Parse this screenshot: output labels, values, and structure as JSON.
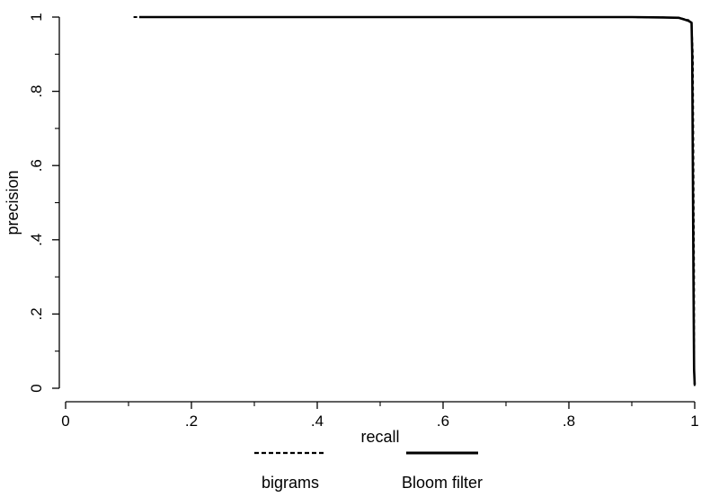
{
  "chart_data": {
    "type": "line",
    "title": "",
    "xlabel": "recall",
    "ylabel": "precision",
    "xlim": [
      0,
      1
    ],
    "ylim": [
      0,
      1
    ],
    "x_ticks": [
      0,
      0.2,
      0.4,
      0.6,
      0.8,
      1
    ],
    "x_tick_labels": [
      "0",
      ".2",
      ".4",
      ".6",
      ".8",
      "1"
    ],
    "x_minor_ticks": [
      0.1,
      0.3,
      0.5,
      0.7,
      0.9
    ],
    "y_ticks": [
      0,
      0.2,
      0.4,
      0.6,
      0.8,
      1
    ],
    "y_tick_labels": [
      "0",
      ".2",
      ".4",
      ".6",
      ".8",
      "1"
    ],
    "y_minor_ticks": [
      0.1,
      0.3,
      0.5,
      0.7,
      0.9
    ],
    "grid": false,
    "legend_position": "bottom",
    "series": [
      {
        "name": "bigrams",
        "style": "dashed",
        "color": "#000000",
        "x": [
          0.108,
          0.11,
          0.2,
          0.4,
          0.6,
          0.8,
          0.9,
          0.95,
          0.975,
          0.99,
          0.995,
          0.997,
          0.998,
          0.999,
          0.999,
          1.0
        ],
        "y": [
          1.0,
          1.0,
          1.0,
          1.0,
          1.0,
          1.0,
          1.0,
          0.999,
          0.998,
          0.992,
          0.98,
          0.9,
          0.6,
          0.3,
          0.05,
          0.0
        ]
      },
      {
        "name": "Bloom filter",
        "style": "solid",
        "color": "#000000",
        "x": [
          0.117,
          0.2,
          0.4,
          0.6,
          0.8,
          0.9,
          0.95,
          0.975,
          0.99,
          0.995,
          0.996,
          0.997,
          0.998,
          0.999,
          1.0
        ],
        "y": [
          1.0,
          1.0,
          1.0,
          1.0,
          1.0,
          1.0,
          0.999,
          0.998,
          0.99,
          0.985,
          0.9,
          0.6,
          0.3,
          0.05,
          0.01
        ]
      }
    ]
  }
}
